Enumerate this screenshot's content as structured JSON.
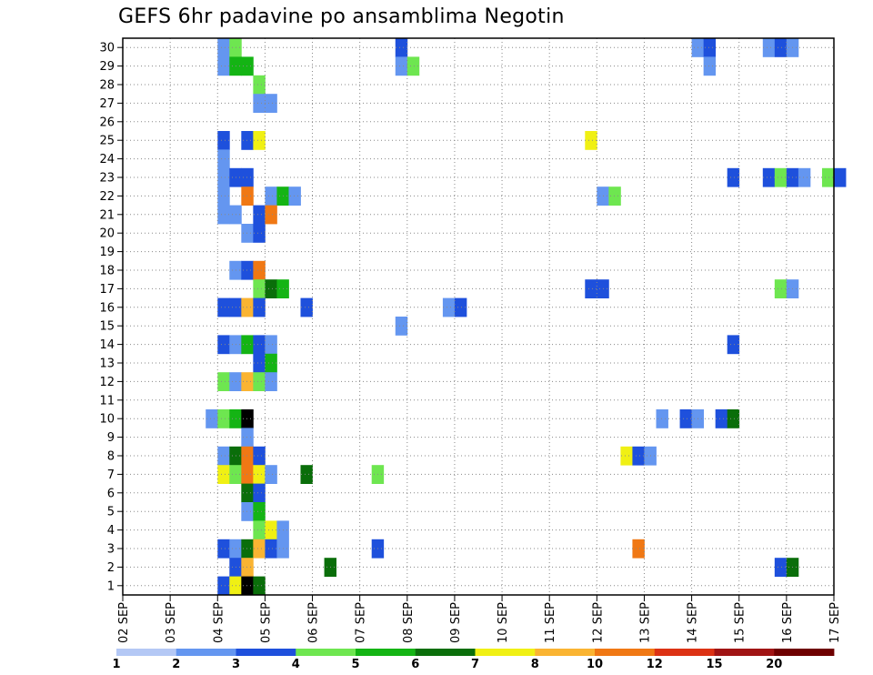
{
  "chart_data": {
    "type": "heatmap",
    "title": "GEFS 6hr padavine po ansamblima Negotin",
    "xlabel": "",
    "ylabel": "",
    "x_ticks": [
      "02 SEP",
      "03 SEP",
      "04 SEP",
      "05 SEP",
      "06 SEP",
      "07 SEP",
      "08 SEP",
      "09 SEP",
      "10 SEP",
      "11 SEP",
      "12 SEP",
      "13 SEP",
      "14 SEP",
      "15 SEP",
      "16 SEP",
      "17 SEP"
    ],
    "xlim_days": [
      0,
      15
    ],
    "y_ticks": [
      1,
      2,
      3,
      4,
      5,
      6,
      7,
      8,
      9,
      10,
      11,
      12,
      13,
      14,
      15,
      16,
      17,
      18,
      19,
      20,
      21,
      22,
      23,
      24,
      25,
      26,
      27,
      28,
      29,
      30
    ],
    "ylim": [
      0.5,
      30.5
    ],
    "grid": true,
    "colorbar": {
      "labels": [
        "1",
        "2",
        "3",
        "4",
        "5",
        "6",
        "7",
        "8",
        "10",
        "12",
        "15",
        "20"
      ],
      "colors": [
        "#b4c8f5",
        "#6496f0",
        "#1e50dc",
        "#6ee650",
        "#14b414",
        "#0a6e0a",
        "#f0f014",
        "#fab432",
        "#f07814",
        "#dc3214",
        "#a01414",
        "#6e0000"
      ]
    },
    "cells": [
      [
        30,
        2.0,
        1
      ],
      [
        30,
        2.25,
        3
      ],
      [
        30,
        5.75,
        2
      ],
      [
        30,
        12.0,
        1
      ],
      [
        30,
        12.25,
        2
      ],
      [
        30,
        13.5,
        1
      ],
      [
        30,
        13.75,
        2
      ],
      [
        30,
        14.0,
        1
      ],
      [
        29,
        2.0,
        1
      ],
      [
        29,
        2.25,
        4
      ],
      [
        29,
        2.5,
        4
      ],
      [
        29,
        5.75,
        1
      ],
      [
        29,
        6.0,
        3
      ],
      [
        29,
        12.25,
        1
      ],
      [
        28,
        2.75,
        3
      ],
      [
        27,
        2.75,
        1
      ],
      [
        27,
        3.0,
        1
      ],
      [
        25,
        2.0,
        2
      ],
      [
        25,
        2.5,
        2
      ],
      [
        25,
        2.75,
        6
      ],
      [
        25,
        9.75,
        6
      ],
      [
        24,
        2.0,
        1
      ],
      [
        23,
        2.0,
        1
      ],
      [
        23,
        2.25,
        2
      ],
      [
        23,
        2.5,
        2
      ],
      [
        23,
        12.75,
        2
      ],
      [
        23,
        13.5,
        2
      ],
      [
        23,
        13.75,
        3
      ],
      [
        23,
        14.0,
        2
      ],
      [
        23,
        14.25,
        1
      ],
      [
        23,
        14.75,
        3
      ],
      [
        23,
        15.0,
        2
      ],
      [
        22,
        2.0,
        1
      ],
      [
        22,
        2.5,
        8
      ],
      [
        22,
        3.0,
        1
      ],
      [
        22,
        3.25,
        4
      ],
      [
        22,
        3.5,
        1
      ],
      [
        22,
        10.0,
        1
      ],
      [
        22,
        10.25,
        3
      ],
      [
        21,
        2.0,
        1
      ],
      [
        21,
        2.25,
        1
      ],
      [
        21,
        2.75,
        2
      ],
      [
        21,
        3.0,
        8
      ],
      [
        20,
        2.5,
        1
      ],
      [
        20,
        2.75,
        2
      ],
      [
        18,
        2.25,
        1
      ],
      [
        18,
        2.5,
        2
      ],
      [
        18,
        2.75,
        8
      ],
      [
        17,
        2.75,
        3
      ],
      [
        17,
        3.0,
        5
      ],
      [
        17,
        3.25,
        4
      ],
      [
        17,
        9.75,
        2
      ],
      [
        17,
        10.0,
        2
      ],
      [
        17,
        13.75,
        3
      ],
      [
        17,
        14.0,
        1
      ],
      [
        16,
        2.0,
        2
      ],
      [
        16,
        2.25,
        2
      ],
      [
        16,
        2.5,
        7
      ],
      [
        16,
        2.75,
        2
      ],
      [
        16,
        3.75,
        2
      ],
      [
        16,
        6.75,
        1
      ],
      [
        16,
        7.0,
        2
      ],
      [
        15,
        5.75,
        1
      ],
      [
        14,
        2.0,
        2
      ],
      [
        14,
        2.25,
        1
      ],
      [
        14,
        2.5,
        4
      ],
      [
        14,
        2.75,
        2
      ],
      [
        14,
        3.0,
        1
      ],
      [
        14,
        12.75,
        2
      ],
      [
        13,
        2.75,
        2
      ],
      [
        13,
        3.0,
        4
      ],
      [
        12,
        2.0,
        3
      ],
      [
        12,
        2.25,
        1
      ],
      [
        12,
        2.5,
        7
      ],
      [
        12,
        2.75,
        3
      ],
      [
        12,
        3.0,
        1
      ],
      [
        10,
        1.75,
        1
      ],
      [
        10,
        2.0,
        3
      ],
      [
        10,
        2.25,
        4
      ],
      [
        10,
        2.5,
        12
      ],
      [
        10,
        11.25,
        1
      ],
      [
        10,
        11.75,
        2
      ],
      [
        10,
        12.0,
        1
      ],
      [
        10,
        12.5,
        2
      ],
      [
        10,
        12.75,
        5
      ],
      [
        9,
        2.5,
        1
      ],
      [
        8,
        2.0,
        1
      ],
      [
        8,
        2.25,
        5
      ],
      [
        8,
        2.5,
        8
      ],
      [
        8,
        2.75,
        2
      ],
      [
        8,
        10.5,
        6
      ],
      [
        8,
        10.75,
        2
      ],
      [
        8,
        11.0,
        1
      ],
      [
        7,
        2.0,
        6
      ],
      [
        7,
        2.25,
        3
      ],
      [
        7,
        2.5,
        8
      ],
      [
        7,
        2.75,
        6
      ],
      [
        7,
        3.0,
        1
      ],
      [
        7,
        3.75,
        5
      ],
      [
        7,
        5.25,
        3
      ],
      [
        6,
        2.5,
        5
      ],
      [
        6,
        2.75,
        2
      ],
      [
        5,
        2.5,
        1
      ],
      [
        5,
        2.75,
        4
      ],
      [
        4,
        2.75,
        3
      ],
      [
        4,
        3.0,
        6
      ],
      [
        4,
        3.25,
        1
      ],
      [
        3,
        2.0,
        2
      ],
      [
        3,
        2.25,
        1
      ],
      [
        3,
        2.5,
        5
      ],
      [
        3,
        2.75,
        7
      ],
      [
        3,
        3.0,
        2
      ],
      [
        3,
        3.25,
        1
      ],
      [
        3,
        5.25,
        2
      ],
      [
        3,
        10.75,
        8
      ],
      [
        2,
        2.25,
        2
      ],
      [
        2,
        2.5,
        7
      ],
      [
        2,
        4.25,
        5
      ],
      [
        2,
        13.75,
        2
      ],
      [
        2,
        14.0,
        5
      ],
      [
        1,
        2.0,
        2
      ],
      [
        1,
        2.25,
        6
      ],
      [
        1,
        2.5,
        12
      ],
      [
        1,
        2.75,
        5
      ]
    ]
  }
}
